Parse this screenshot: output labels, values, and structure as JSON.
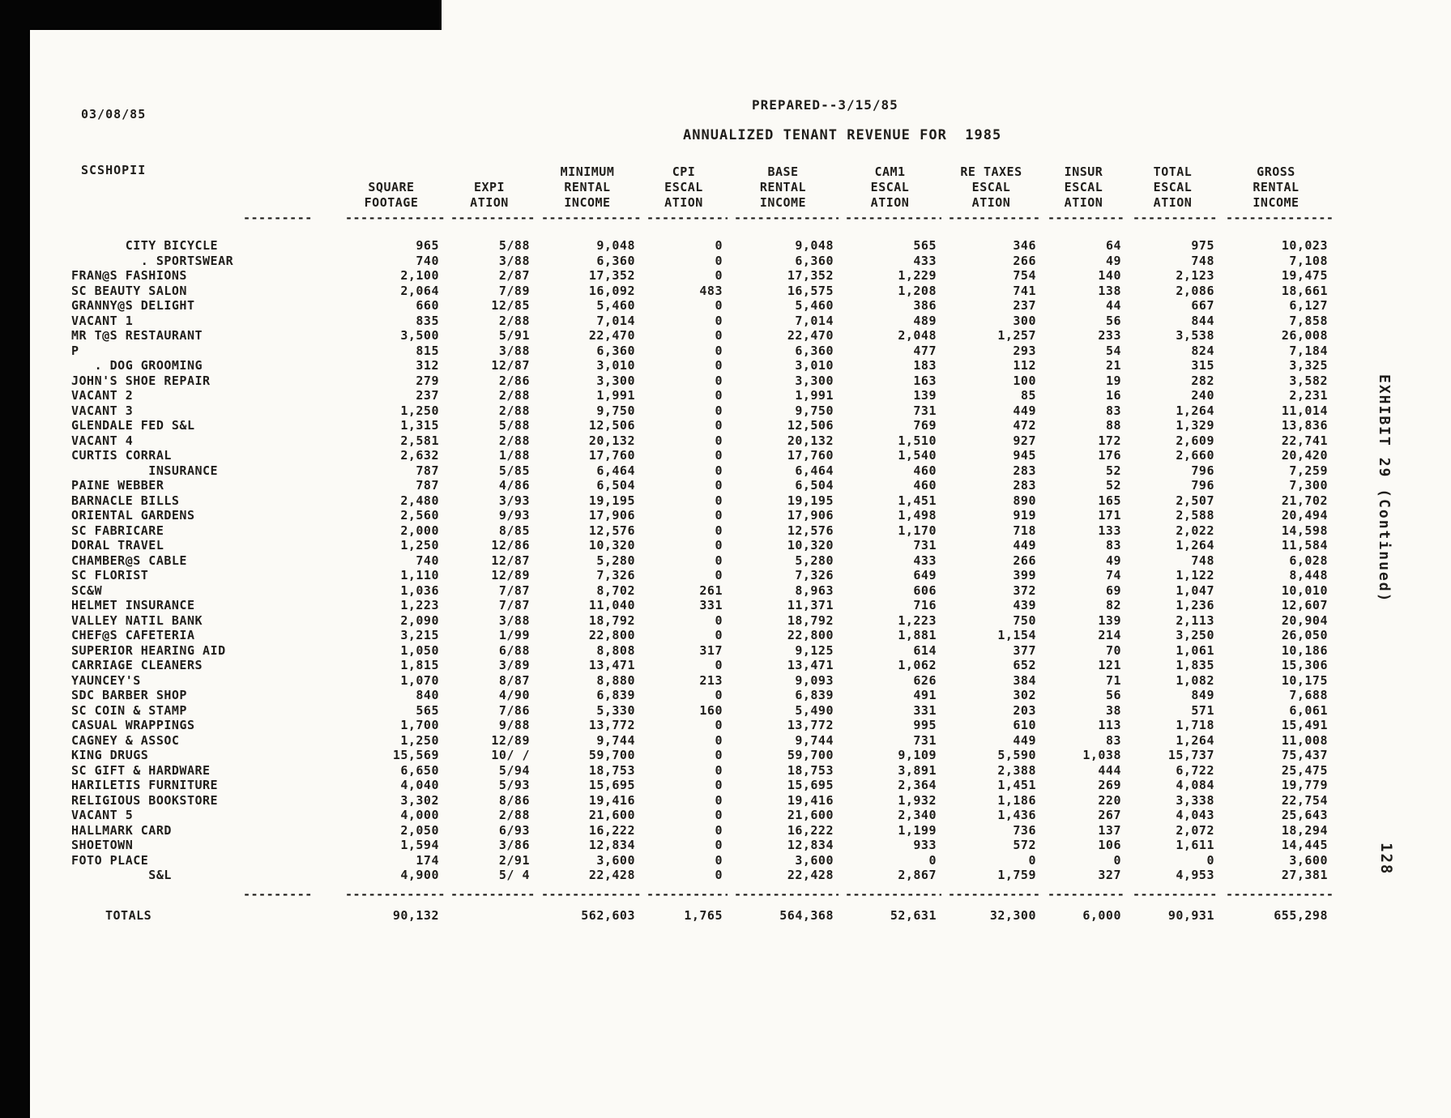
{
  "colors": {
    "ink": "#1f1d1a",
    "paper": "#fbfaf6"
  },
  "header": {
    "date_code": "03/08/85",
    "file_code": "SCSHOPII",
    "prepared": "PREPARED--3/15/85",
    "title": "ANNUALIZED TENANT REVENUE FOR  1985"
  },
  "sidebar": {
    "exhibit": "EXHIBIT 29 (Continued)",
    "page": "128"
  },
  "table": {
    "separator": "------------------------",
    "separator_short": "---------",
    "columns": [
      {
        "id": "tenant",
        "lines": []
      },
      {
        "id": "square-footage",
        "lines": [
          "SQUARE",
          "FOOTAGE"
        ]
      },
      {
        "id": "expiration",
        "lines": [
          "EXPI",
          "ATION"
        ]
      },
      {
        "id": "minimum-rental-income",
        "lines": [
          "MINIMUM",
          "RENTAL",
          "INCOME"
        ]
      },
      {
        "id": "cpi-escalation",
        "lines": [
          "CPI",
          "ESCAL",
          "ATION"
        ]
      },
      {
        "id": "base-rental-income",
        "lines": [
          "BASE",
          "RENTAL",
          "INCOME"
        ]
      },
      {
        "id": "cam1-escalation",
        "lines": [
          "CAM1",
          "ESCAL",
          "ATION"
        ]
      },
      {
        "id": "re-taxes-escalation",
        "lines": [
          "RE TAXES",
          "ESCAL",
          "ATION"
        ]
      },
      {
        "id": "insur-escalation",
        "lines": [
          "INSUR",
          "ESCAL",
          "ATION"
        ]
      },
      {
        "id": "total-escalation",
        "lines": [
          "TOTAL",
          "ESCAL",
          "ATION"
        ]
      },
      {
        "id": "gross-rental-income",
        "lines": [
          "GROSS",
          "RENTAL",
          "INCOME"
        ]
      }
    ],
    "rows": [
      {
        "name": "       CITY BICYCLE",
        "values": [
          "965",
          "5/88",
          "9,048",
          "0",
          "9,048",
          "565",
          "346",
          "64",
          "975",
          "10,023"
        ]
      },
      {
        "name": "         . SPORTSWEAR",
        "values": [
          "740",
          "3/88",
          "6,360",
          "0",
          "6,360",
          "433",
          "266",
          "49",
          "748",
          "7,108"
        ]
      },
      {
        "name": "FRAN@S FASHIONS",
        "values": [
          "2,100",
          "2/87",
          "17,352",
          "0",
          "17,352",
          "1,229",
          "754",
          "140",
          "2,123",
          "19,475"
        ]
      },
      {
        "name": "SC BEAUTY SALON",
        "values": [
          "2,064",
          "7/89",
          "16,092",
          "483",
          "16,575",
          "1,208",
          "741",
          "138",
          "2,086",
          "18,661"
        ]
      },
      {
        "name": "GRANNY@S DELIGHT",
        "values": [
          "660",
          "12/85",
          "5,460",
          "0",
          "5,460",
          "386",
          "237",
          "44",
          "667",
          "6,127"
        ]
      },
      {
        "name": "VACANT 1",
        "values": [
          "835",
          "2/88",
          "7,014",
          "0",
          "7,014",
          "489",
          "300",
          "56",
          "844",
          "7,858"
        ]
      },
      {
        "name": "MR T@S RESTAURANT",
        "values": [
          "3,500",
          "5/91",
          "22,470",
          "0",
          "22,470",
          "2,048",
          "1,257",
          "233",
          "3,538",
          "26,008"
        ]
      },
      {
        "name": "P",
        "values": [
          "815",
          "3/88",
          "6,360",
          "0",
          "6,360",
          "477",
          "293",
          "54",
          "824",
          "7,184"
        ]
      },
      {
        "name": "   . DOG GROOMING",
        "values": [
          "312",
          "12/87",
          "3,010",
          "0",
          "3,010",
          "183",
          "112",
          "21",
          "315",
          "3,325"
        ]
      },
      {
        "name": "JOHN'S SHOE REPAIR",
        "values": [
          "279",
          "2/86",
          "3,300",
          "0",
          "3,300",
          "163",
          "100",
          "19",
          "282",
          "3,582"
        ]
      },
      {
        "name": "VACANT 2",
        "values": [
          "237",
          "2/88",
          "1,991",
          "0",
          "1,991",
          "139",
          "85",
          "16",
          "240",
          "2,231"
        ]
      },
      {
        "name": "VACANT 3",
        "values": [
          "1,250",
          "2/88",
          "9,750",
          "0",
          "9,750",
          "731",
          "449",
          "83",
          "1,264",
          "11,014"
        ]
      },
      {
        "name": "GLENDALE FED S&L",
        "values": [
          "1,315",
          "5/88",
          "12,506",
          "0",
          "12,506",
          "769",
          "472",
          "88",
          "1,329",
          "13,836"
        ]
      },
      {
        "name": "VACANT 4",
        "values": [
          "2,581",
          "2/88",
          "20,132",
          "0",
          "20,132",
          "1,510",
          "927",
          "172",
          "2,609",
          "22,741"
        ]
      },
      {
        "name": "CURTIS CORRAL",
        "values": [
          "2,632",
          "1/88",
          "17,760",
          "0",
          "17,760",
          "1,540",
          "945",
          "176",
          "2,660",
          "20,420"
        ]
      },
      {
        "name": "          INSURANCE",
        "values": [
          "787",
          "5/85",
          "6,464",
          "0",
          "6,464",
          "460",
          "283",
          "52",
          "796",
          "7,259"
        ]
      },
      {
        "name": "PAINE WEBBER",
        "values": [
          "787",
          "4/86",
          "6,504",
          "0",
          "6,504",
          "460",
          "283",
          "52",
          "796",
          "7,300"
        ]
      },
      {
        "name": "BARNACLE BILLS",
        "values": [
          "2,480",
          "3/93",
          "19,195",
          "0",
          "19,195",
          "1,451",
          "890",
          "165",
          "2,507",
          "21,702"
        ]
      },
      {
        "name": "ORIENTAL GARDENS",
        "values": [
          "2,560",
          "9/93",
          "17,906",
          "0",
          "17,906",
          "1,498",
          "919",
          "171",
          "2,588",
          "20,494"
        ]
      },
      {
        "name": "SC FABRICARE",
        "values": [
          "2,000",
          "8/85",
          "12,576",
          "0",
          "12,576",
          "1,170",
          "718",
          "133",
          "2,022",
          "14,598"
        ]
      },
      {
        "name": "DORAL TRAVEL",
        "values": [
          "1,250",
          "12/86",
          "10,320",
          "0",
          "10,320",
          "731",
          "449",
          "83",
          "1,264",
          "11,584"
        ]
      },
      {
        "name": "CHAMBER@S CABLE",
        "values": [
          "740",
          "12/87",
          "5,280",
          "0",
          "5,280",
          "433",
          "266",
          "49",
          "748",
          "6,028"
        ]
      },
      {
        "name": "SC FLORIST",
        "values": [
          "1,110",
          "12/89",
          "7,326",
          "0",
          "7,326",
          "649",
          "399",
          "74",
          "1,122",
          "8,448"
        ]
      },
      {
        "name": "SC&W",
        "values": [
          "1,036",
          "7/87",
          "8,702",
          "261",
          "8,963",
          "606",
          "372",
          "69",
          "1,047",
          "10,010"
        ]
      },
      {
        "name": "HELMET INSURANCE",
        "values": [
          "1,223",
          "7/87",
          "11,040",
          "331",
          "11,371",
          "716",
          "439",
          "82",
          "1,236",
          "12,607"
        ]
      },
      {
        "name": "VALLEY NATIL BANK",
        "values": [
          "2,090",
          "3/88",
          "18,792",
          "0",
          "18,792",
          "1,223",
          "750",
          "139",
          "2,113",
          "20,904"
        ]
      },
      {
        "name": "CHEF@S CAFETERIA",
        "values": [
          "3,215",
          "1/99",
          "22,800",
          "0",
          "22,800",
          "1,881",
          "1,154",
          "214",
          "3,250",
          "26,050"
        ]
      },
      {
        "name": "SUPERIOR HEARING AID",
        "values": [
          "1,050",
          "6/88",
          "8,808",
          "317",
          "9,125",
          "614",
          "377",
          "70",
          "1,061",
          "10,186"
        ]
      },
      {
        "name": "CARRIAGE CLEANERS",
        "values": [
          "1,815",
          "3/89",
          "13,471",
          "0",
          "13,471",
          "1,062",
          "652",
          "121",
          "1,835",
          "15,306"
        ]
      },
      {
        "name": "YAUNCEY'S",
        "values": [
          "1,070",
          "8/87",
          "8,880",
          "213",
          "9,093",
          "626",
          "384",
          "71",
          "1,082",
          "10,175"
        ]
      },
      {
        "name": "SDC BARBER SHOP",
        "values": [
          "840",
          "4/90",
          "6,839",
          "0",
          "6,839",
          "491",
          "302",
          "56",
          "849",
          "7,688"
        ]
      },
      {
        "name": "SC COIN & STAMP",
        "values": [
          "565",
          "7/86",
          "5,330",
          "160",
          "5,490",
          "331",
          "203",
          "38",
          "571",
          "6,061"
        ]
      },
      {
        "name": "CASUAL WRAPPINGS",
        "values": [
          "1,700",
          "9/88",
          "13,772",
          "0",
          "13,772",
          "995",
          "610",
          "113",
          "1,718",
          "15,491"
        ]
      },
      {
        "name": "CAGNEY & ASSOC",
        "values": [
          "1,250",
          "12/89",
          "9,744",
          "0",
          "9,744",
          "731",
          "449",
          "83",
          "1,264",
          "11,008"
        ]
      },
      {
        "name": "KING DRUGS",
        "values": [
          "15,569",
          "10/ /",
          "59,700",
          "0",
          "59,700",
          "9,109",
          "5,590",
          "1,038",
          "15,737",
          "75,437"
        ]
      },
      {
        "name": "SC GIFT & HARDWARE",
        "values": [
          "6,650",
          "5/94",
          "18,753",
          "0",
          "18,753",
          "3,891",
          "2,388",
          "444",
          "6,722",
          "25,475"
        ]
      },
      {
        "name": "HARILETIS FURNITURE",
        "values": [
          "4,040",
          "5/93",
          "15,695",
          "0",
          "15,695",
          "2,364",
          "1,451",
          "269",
          "4,084",
          "19,779"
        ]
      },
      {
        "name": "RELIGIOUS BOOKSTORE",
        "values": [
          "3,302",
          "8/86",
          "19,416",
          "0",
          "19,416",
          "1,932",
          "1,186",
          "220",
          "3,338",
          "22,754"
        ]
      },
      {
        "name": "VACANT 5",
        "values": [
          "4,000",
          "2/88",
          "21,600",
          "0",
          "21,600",
          "2,340",
          "1,436",
          "267",
          "4,043",
          "25,643"
        ]
      },
      {
        "name": "HALLMARK CARD",
        "values": [
          "2,050",
          "6/93",
          "16,222",
          "0",
          "16,222",
          "1,199",
          "736",
          "137",
          "2,072",
          "18,294"
        ]
      },
      {
        "name": "SHOETOWN",
        "values": [
          "1,594",
          "3/86",
          "12,834",
          "0",
          "12,834",
          "933",
          "572",
          "106",
          "1,611",
          "14,445"
        ]
      },
      {
        "name": "FOTO PLACE",
        "values": [
          "174",
          "2/91",
          "3,600",
          "0",
          "3,600",
          "0",
          "0",
          "0",
          "0",
          "3,600"
        ]
      },
      {
        "name": "          S&L",
        "values": [
          "4,900",
          "5/ 4",
          "22,428",
          "0",
          "22,428",
          "2,867",
          "1,759",
          "327",
          "4,953",
          "27,381"
        ]
      }
    ],
    "totals": {
      "label": "TOTALS",
      "values": [
        "90,132",
        "",
        "562,603",
        "1,765",
        "564,368",
        "52,631",
        "32,300",
        "6,000",
        "90,931",
        "655,298"
      ]
    }
  }
}
